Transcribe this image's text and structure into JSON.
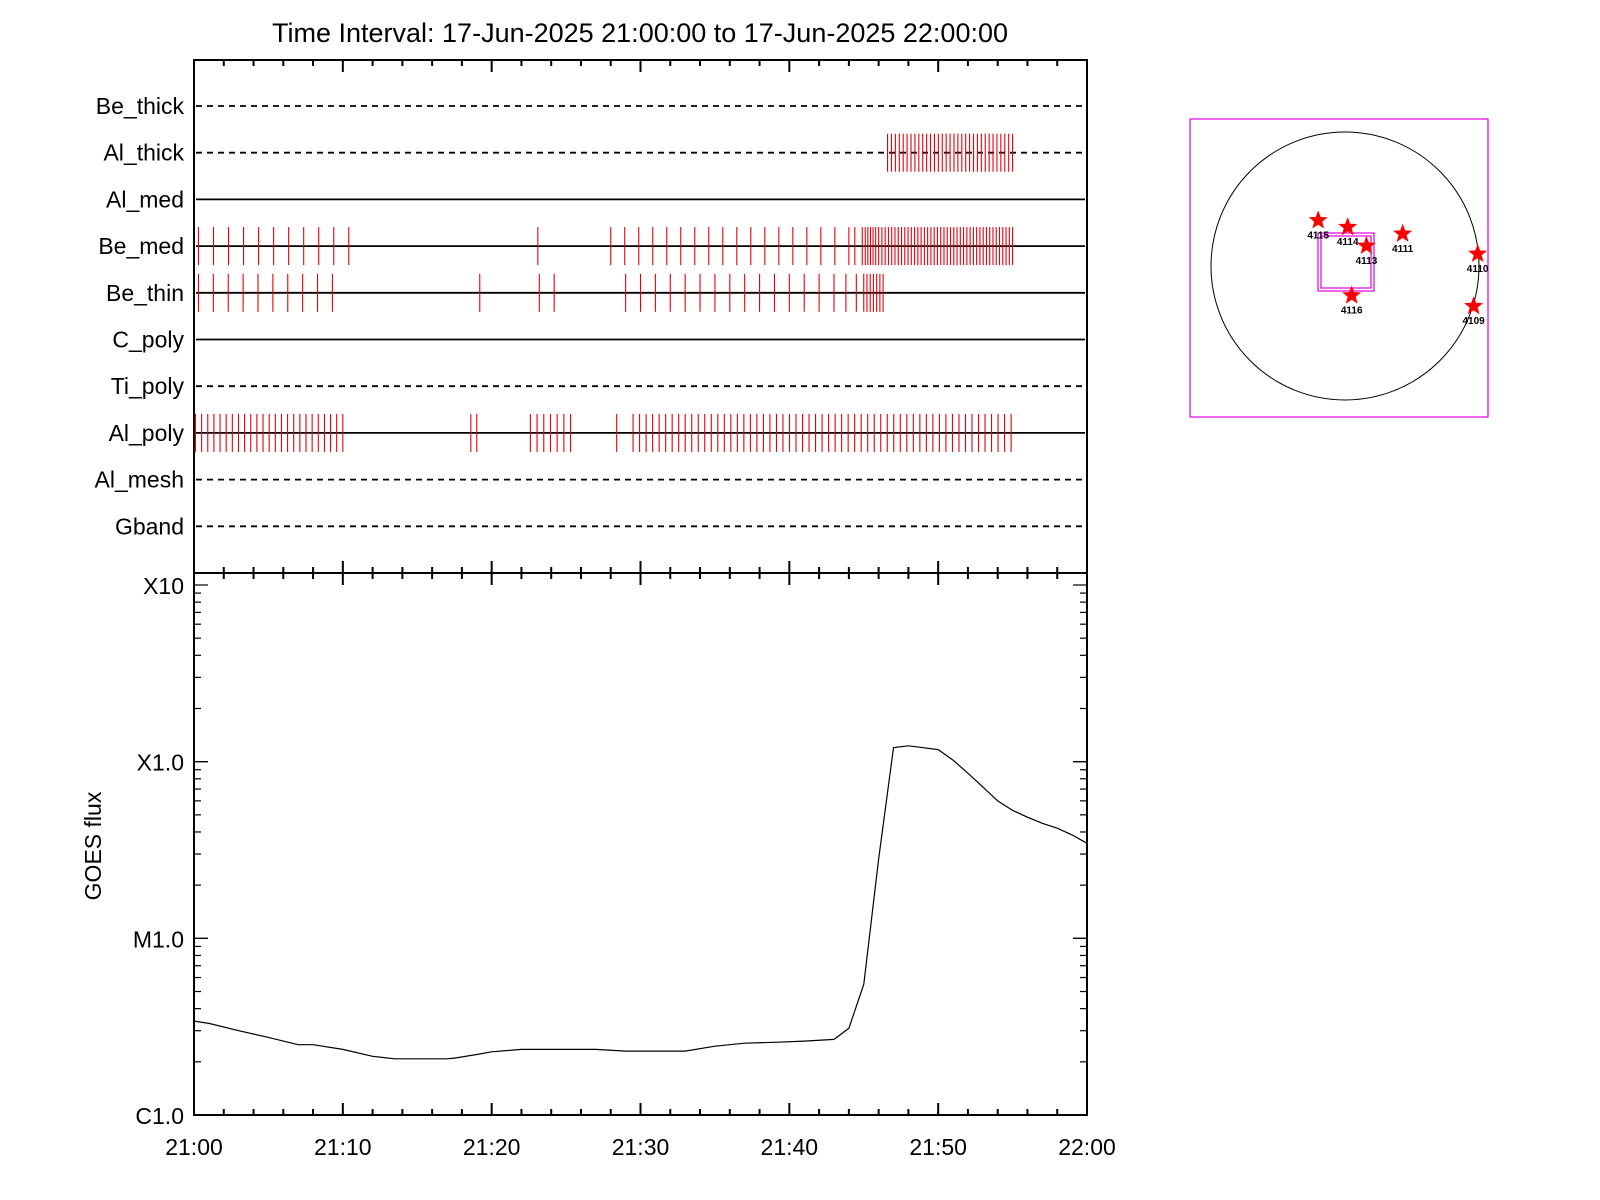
{
  "title": "Time Interval: 17-Jun-2025 21:00:00 to 17-Jun-2025 22:00:00",
  "chart_data": [
    {
      "type": "timeline",
      "x_range": [
        "21:00",
        "22:00"
      ],
      "filters": [
        {
          "name": "Be_thick",
          "style": "dashed",
          "events": []
        },
        {
          "name": "Al_thick",
          "style": "dashed",
          "events": [
            [
              46.6,
              55.0,
              33
            ]
          ]
        },
        {
          "name": "Al_med",
          "style": "solid",
          "events": []
        },
        {
          "name": "Be_med",
          "style": "solid",
          "events": [
            [
              0.3,
              10.4,
              11
            ],
            23.1,
            [
              28.0,
              44.0,
              18
            ],
            44.4,
            44.9,
            [
              45.1,
              45.8,
              5
            ],
            [
              46.0,
              55.0,
              42
            ]
          ]
        },
        {
          "name": "Be_thin",
          "style": "solid",
          "events": [
            [
              0.3,
              9.3,
              10
            ],
            19.2,
            23.2,
            24.2,
            [
              29.0,
              43.0,
              15
            ],
            43.8,
            44.5,
            [
              45.0,
              46.3,
              7
            ]
          ]
        },
        {
          "name": "C_poly",
          "style": "solid",
          "events": []
        },
        {
          "name": "Ti_poly",
          "style": "dashed",
          "events": []
        },
        {
          "name": "Al_poly",
          "style": "solid",
          "events": [
            [
              0.1,
              10.0,
              25
            ],
            18.6,
            19.0,
            [
              22.6,
              25.3,
              7
            ],
            28.4,
            [
              29.5,
              54.9,
              59
            ]
          ]
        },
        {
          "name": "Al_mesh",
          "style": "dashed",
          "events": []
        },
        {
          "name": "Gband",
          "style": "dashed",
          "events": []
        }
      ]
    },
    {
      "type": "line",
      "ylabel": "GOES flux",
      "yscale": "log",
      "ytick_labels": [
        "C1.0",
        "M1.0",
        "X1.0",
        "X10"
      ],
      "ylim": [
        1e-06,
        0.001
      ],
      "xlim": [
        0,
        60
      ],
      "xtick_labels": [
        "21:00",
        "21:10",
        "21:20",
        "21:30",
        "21:40",
        "21:50",
        "22:00"
      ],
      "series": [
        {
          "x": [
            0,
            1,
            3,
            5,
            7,
            8,
            10,
            12,
            13.5,
            15,
            17,
            17.5,
            19,
            20,
            22,
            25,
            27,
            29,
            31,
            33,
            35,
            37,
            39,
            41,
            43,
            44,
            45,
            46,
            47,
            48,
            49,
            50,
            51,
            52,
            53,
            54,
            55,
            56,
            57,
            58,
            59,
            60
          ],
          "y": [
            3.4e-06,
            3.3e-06,
            3e-06,
            2.75e-06,
            2.5e-06,
            2.5e-06,
            2.35e-06,
            2.15e-06,
            2.08e-06,
            2.08e-06,
            2.08e-06,
            2.1e-06,
            2.2e-06,
            2.28e-06,
            2.35e-06,
            2.35e-06,
            2.35e-06,
            2.3e-06,
            2.3e-06,
            2.3e-06,
            2.45e-06,
            2.55e-06,
            2.58e-06,
            2.62e-06,
            2.68e-06,
            3.1e-06,
            5.5e-06,
            2.8e-05,
            0.00012,
            0.000123,
            0.00012,
            0.000117,
            0.000102,
            8.6e-05,
            7.2e-05,
            6e-05,
            5.3e-05,
            4.85e-05,
            4.48e-05,
            4.2e-05,
            3.85e-05,
            3.45e-05
          ]
        }
      ]
    },
    {
      "type": "scatter",
      "axes": "solar-disk",
      "points": [
        {
          "label": "4115",
          "x": -0.2,
          "y": 0.34
        },
        {
          "label": "4114",
          "x": 0.02,
          "y": 0.29
        },
        {
          "label": "4113",
          "x": 0.16,
          "y": 0.15
        },
        {
          "label": "4111",
          "x": 0.43,
          "y": 0.24
        },
        {
          "label": "4110",
          "x": 0.99,
          "y": 0.09
        },
        {
          "label": "4116",
          "x": 0.05,
          "y": -0.22
        },
        {
          "label": "4109",
          "x": 0.96,
          "y": -0.3
        }
      ]
    }
  ],
  "colors": {
    "events": "#e8000b",
    "stars": "#ff0000",
    "fov": "#e000e0",
    "axes": "#000000"
  }
}
